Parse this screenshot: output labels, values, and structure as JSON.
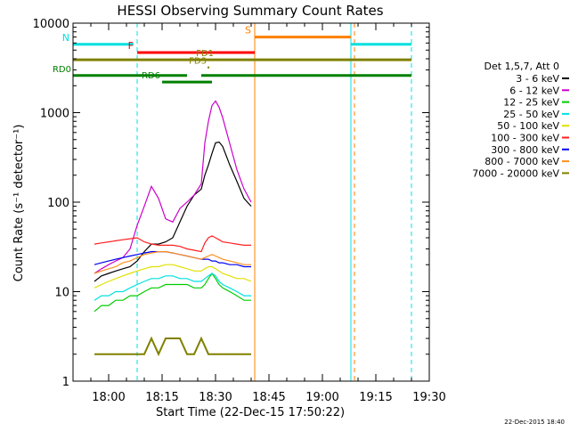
{
  "chart_data": {
    "type": "line",
    "title": "HESSI Observing Summary Count Rates",
    "xlabel": "Start Time (22-Dec-15 17:50:22)",
    "ylabel": "Count Rate (s⁻¹ detector⁻¹)",
    "yscale": "log",
    "xlim": [
      "17:50",
      "19:30"
    ],
    "ylim": [
      1,
      10000
    ],
    "x_ticks": [
      "18:00",
      "18:15",
      "18:30",
      "18:45",
      "19:00",
      "19:15",
      "19:30"
    ],
    "y_ticks": [
      "1",
      "10",
      "100",
      "1000",
      "10000"
    ],
    "legend_title": "Det 1,5,7, Att 0",
    "legend_placement": "right",
    "timestamp": "22-Dec-2015 18:40",
    "series": [
      {
        "name": "3 - 6 keV",
        "color": "#000000",
        "x": [
          "17:56",
          "17:58",
          "18:00",
          "18:02",
          "18:04",
          "18:06",
          "18:08",
          "18:10",
          "18:12",
          "18:14",
          "18:16",
          "18:18",
          "18:20",
          "18:22",
          "18:24",
          "18:26",
          "18:27",
          "18:28",
          "18:29",
          "18:30",
          "18:31",
          "18:32",
          "18:34",
          "18:36",
          "18:38",
          "18:40"
        ],
        "y": [
          13,
          15,
          16,
          17,
          18,
          19,
          22,
          28,
          34,
          34,
          36,
          40,
          60,
          90,
          120,
          140,
          200,
          260,
          350,
          460,
          470,
          420,
          260,
          170,
          110,
          90
        ]
      },
      {
        "name": "6 - 12 keV",
        "color": "#cc00cc",
        "x": [
          "17:56",
          "17:58",
          "18:00",
          "18:02",
          "18:04",
          "18:06",
          "18:08",
          "18:10",
          "18:12",
          "18:14",
          "18:16",
          "18:18",
          "18:20",
          "18:22",
          "18:24",
          "18:26",
          "18:27",
          "18:28",
          "18:29",
          "18:30",
          "18:31",
          "18:32",
          "18:34",
          "18:36",
          "18:38",
          "18:40"
        ],
        "y": [
          16,
          18,
          20,
          22,
          24,
          30,
          55,
          90,
          150,
          110,
          65,
          60,
          85,
          100,
          120,
          160,
          460,
          800,
          1200,
          1350,
          1150,
          880,
          450,
          230,
          140,
          100
        ]
      },
      {
        "name": "12 - 25 keV",
        "color": "#00cc00",
        "x": [
          "17:56",
          "17:58",
          "18:00",
          "18:02",
          "18:04",
          "18:06",
          "18:08",
          "18:10",
          "18:12",
          "18:14",
          "18:16",
          "18:18",
          "18:20",
          "18:22",
          "18:24",
          "18:26",
          "18:27",
          "18:28",
          "18:29",
          "18:30",
          "18:31",
          "18:32",
          "18:34",
          "18:36",
          "18:38",
          "18:40"
        ],
        "y": [
          6,
          7,
          7,
          8,
          8,
          9,
          9,
          10,
          11,
          11,
          12,
          12,
          12,
          12,
          11,
          11,
          12,
          14,
          16,
          14,
          12,
          11,
          10,
          9,
          8,
          8
        ]
      },
      {
        "name": "25 - 50 keV",
        "color": "#00e0e0",
        "x": [
          "17:56",
          "17:58",
          "18:00",
          "18:02",
          "18:04",
          "18:06",
          "18:08",
          "18:10",
          "18:12",
          "18:14",
          "18:16",
          "18:18",
          "18:20",
          "18:22",
          "18:24",
          "18:26",
          "18:27",
          "18:28",
          "18:29",
          "18:30",
          "18:31",
          "18:32",
          "18:34",
          "18:36",
          "18:38",
          "18:40"
        ],
        "y": [
          8,
          9,
          9,
          10,
          10,
          11,
          12,
          13,
          14,
          14,
          15,
          15,
          14,
          14,
          13,
          13,
          14,
          15,
          16,
          15,
          13,
          12,
          11,
          10,
          9,
          9
        ]
      },
      {
        "name": "50 - 100 keV",
        "color": "#e0e000",
        "x": [
          "17:56",
          "17:58",
          "18:00",
          "18:02",
          "18:04",
          "18:06",
          "18:08",
          "18:10",
          "18:12",
          "18:14",
          "18:16",
          "18:18",
          "18:20",
          "18:22",
          "18:24",
          "18:26",
          "18:27",
          "18:28",
          "18:29",
          "18:30",
          "18:31",
          "18:32",
          "18:34",
          "18:36",
          "18:38",
          "18:40"
        ],
        "y": [
          11,
          12,
          13,
          14,
          15,
          16,
          17,
          18,
          19,
          19,
          20,
          20,
          19,
          18,
          17,
          17,
          18,
          19,
          19,
          18,
          17,
          16,
          15,
          14,
          14,
          13
        ]
      },
      {
        "name": "100 - 300 keV",
        "color": "#ff2020",
        "x": [
          "17:56",
          "17:58",
          "18:00",
          "18:02",
          "18:04",
          "18:06",
          "18:08",
          "18:10",
          "18:12",
          "18:14",
          "18:16",
          "18:18",
          "18:20",
          "18:22",
          "18:24",
          "18:26",
          "18:27",
          "18:28",
          "18:29",
          "18:30",
          "18:31",
          "18:32",
          "18:34",
          "18:36",
          "18:38",
          "18:40"
        ],
        "y": [
          34,
          35,
          36,
          37,
          38,
          39,
          40,
          36,
          34,
          33,
          33,
          33,
          32,
          30,
          29,
          28,
          35,
          40,
          42,
          40,
          38,
          36,
          35,
          34,
          33,
          33
        ]
      },
      {
        "name": "300 - 800 keV",
        "color": "#0000ee",
        "x": [
          "17:56",
          "17:58",
          "18:00",
          "18:02",
          "18:04",
          "18:06",
          "18:08",
          "18:10",
          "18:12",
          "18:14",
          "18:16",
          "18:18",
          "18:20",
          "18:22",
          "18:24",
          "18:26",
          "18:27",
          "18:28",
          "18:29",
          "18:30",
          "18:31",
          "18:32",
          "18:34",
          "18:36",
          "18:38",
          "18:40"
        ],
        "y": [
          20,
          21,
          22,
          23,
          24,
          25,
          26,
          27,
          28,
          28,
          28,
          27,
          26,
          25,
          24,
          23,
          23,
          23,
          22,
          22,
          21,
          21,
          20,
          20,
          19,
          19
        ]
      },
      {
        "name": "800 - 7000 keV",
        "color": "#ff9020",
        "x": [
          "17:56",
          "17:58",
          "18:00",
          "18:02",
          "18:04",
          "18:06",
          "18:08",
          "18:10",
          "18:12",
          "18:14",
          "18:16",
          "18:18",
          "18:20",
          "18:22",
          "18:24",
          "18:26",
          "18:27",
          "18:28",
          "18:29",
          "18:30",
          "18:31",
          "18:32",
          "18:34",
          "18:36",
          "18:38",
          "18:40"
        ],
        "y": [
          16,
          17,
          18,
          19,
          21,
          22,
          24,
          26,
          27,
          28,
          28,
          27,
          26,
          25,
          24,
          23,
          24,
          25,
          26,
          25,
          24,
          23,
          22,
          21,
          20,
          20
        ]
      },
      {
        "name": "7000 - 20000 keV",
        "color": "#808000",
        "x": [
          "17:56",
          "17:58",
          "18:00",
          "18:02",
          "18:04",
          "18:06",
          "18:08",
          "18:10",
          "18:12",
          "18:14",
          "18:16",
          "18:18",
          "18:20",
          "18:22",
          "18:24",
          "18:26",
          "18:28",
          "18:30",
          "18:32",
          "18:34",
          "18:36",
          "18:38",
          "18:40"
        ],
        "y": [
          2,
          2,
          2,
          2,
          2,
          2,
          2,
          2,
          3,
          2,
          3,
          3,
          3,
          2,
          2,
          3,
          2,
          2,
          2,
          2,
          2,
          2,
          2
        ]
      }
    ],
    "flag_bars": [
      {
        "label": "N",
        "color": "#00e0e0",
        "segments": [
          [
            "17:50",
            "18:07"
          ],
          [
            "19:08",
            "19:25"
          ]
        ],
        "level": 5800
      },
      {
        "label": "S",
        "color": "#ff8000",
        "segments": [
          [
            "18:41",
            "19:08"
          ]
        ],
        "level": 7000
      },
      {
        "label": "F",
        "color": "#ff0000",
        "segments": [
          [
            "18:08",
            "18:41"
          ]
        ],
        "level": 4700
      },
      {
        "label": "",
        "color": "#808000",
        "segments": [
          [
            "17:50",
            "19:25"
          ]
        ],
        "level": 3900
      },
      {
        "label": "FD1",
        "color": "#808000",
        "segments": [
          [
            "18:30",
            "18:30"
          ]
        ],
        "level": 3900
      },
      {
        "label": "FD3",
        "color": "#808000",
        "segments": [
          [
            "18:28",
            "18:28"
          ]
        ],
        "level": 3200
      },
      {
        "label": "RD0",
        "color": "#008000",
        "segments": [
          [
            "17:50",
            "18:22"
          ],
          [
            "18:26",
            "19:25"
          ]
        ],
        "level": 2600
      },
      {
        "label": "RD6",
        "color": "#008000",
        "segments": [
          [
            "18:15",
            "18:29"
          ]
        ],
        "level": 2200
      }
    ],
    "vertical_markers": [
      {
        "time": "17:50",
        "color": "#00e0e0",
        "style": "solid"
      },
      {
        "time": "18:08",
        "color": "#00e0e0",
        "style": "dashed"
      },
      {
        "time": "18:41",
        "color": "#ff8000",
        "style": "solid"
      },
      {
        "time": "19:08",
        "color": "#00e0e0",
        "style": "solid"
      },
      {
        "time": "19:09",
        "color": "#ff8000",
        "style": "dashed"
      },
      {
        "time": "19:25",
        "color": "#00e0e0",
        "style": "dashed"
      }
    ]
  }
}
